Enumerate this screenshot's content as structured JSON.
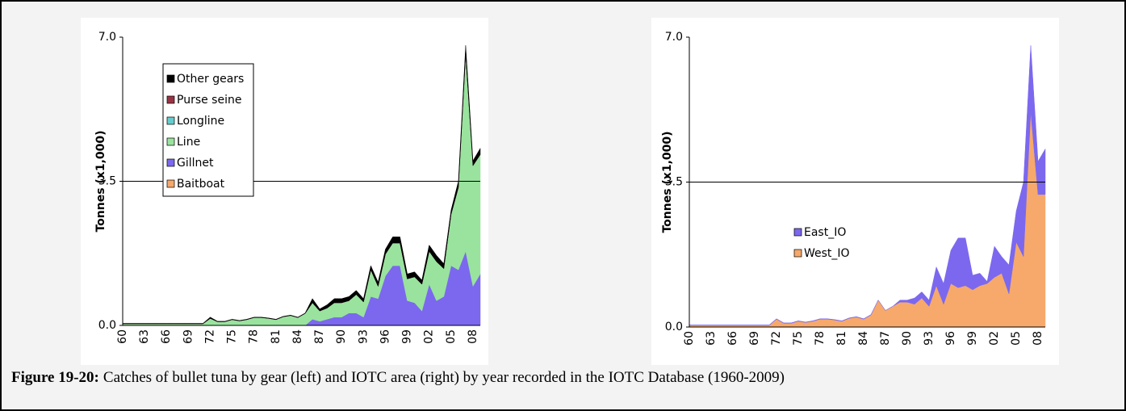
{
  "chart_data": [
    {
      "type": "stacked_area",
      "ylabel": "Tonnes (x1,000)",
      "categories": [
        "60",
        null,
        null,
        "63",
        null,
        null,
        "66",
        null,
        null,
        "69",
        null,
        null,
        "72",
        null,
        null,
        "75",
        null,
        null,
        "78",
        null,
        null,
        "81",
        null,
        null,
        "84",
        null,
        null,
        "87",
        null,
        null,
        "90",
        null,
        null,
        "93",
        null,
        null,
        "96",
        null,
        null,
        "99",
        null,
        null,
        "02",
        null,
        null,
        "05",
        null,
        null,
        "08",
        null
      ],
      "ylim": [
        0,
        7
      ],
      "yticks": [
        {
          "value": 0,
          "label": "0.0"
        },
        {
          "value": 3.5,
          "label": "3.5"
        },
        {
          "value": 7,
          "label": "7.0"
        }
      ],
      "grid": true,
      "legend": "upper left",
      "legend_frame": true,
      "series": [
        {
          "name": "Baitboat",
          "color": "#f6a96b",
          "values": [
            0,
            0,
            0,
            0,
            0,
            0,
            0,
            0,
            0,
            0,
            0,
            0,
            0,
            0,
            0,
            0,
            0,
            0,
            0,
            0,
            0,
            0,
            0,
            0,
            0,
            0,
            0,
            0,
            0,
            0,
            0,
            0,
            0,
            0,
            0,
            0,
            0,
            0,
            0,
            0,
            0,
            0,
            0,
            0,
            0,
            0,
            0,
            0,
            0,
            0
          ]
        },
        {
          "name": "Gillnet",
          "color": "#7b68ee",
          "values": [
            0,
            0,
            0,
            0,
            0,
            0,
            0,
            0,
            0,
            0,
            0,
            0,
            0,
            0,
            0,
            0,
            0,
            0,
            0,
            0,
            0,
            0,
            0,
            0,
            0,
            0,
            0.15,
            0.1,
            0.15,
            0.2,
            0.2,
            0.3,
            0.3,
            0.2,
            0.7,
            0.65,
            1.2,
            1.45,
            1.45,
            0.6,
            0.55,
            0.35,
            1.0,
            0.6,
            0.7,
            1.45,
            1.35,
            1.8,
            0.95,
            1.25
          ]
        },
        {
          "name": "Line",
          "color": "#99e39e",
          "values": [
            0.04,
            0.04,
            0.04,
            0.04,
            0.04,
            0.04,
            0.04,
            0.04,
            0.04,
            0.04,
            0.04,
            0.04,
            0.17,
            0.09,
            0.09,
            0.14,
            0.11,
            0.14,
            0.19,
            0.19,
            0.17,
            0.14,
            0.21,
            0.24,
            0.19,
            0.29,
            0.4,
            0.25,
            0.27,
            0.35,
            0.35,
            0.3,
            0.45,
            0.37,
            0.65,
            0.3,
            0.53,
            0.55,
            0.55,
            0.53,
            0.63,
            0.65,
            0.8,
            0.95,
            0.68,
            1.25,
            2.0,
            4.8,
            2.93,
            2.9
          ]
        },
        {
          "name": "Longline",
          "color": "#66cccc",
          "values": [
            0,
            0,
            0,
            0,
            0,
            0,
            0,
            0,
            0,
            0,
            0,
            0,
            0,
            0,
            0,
            0,
            0,
            0,
            0,
            0,
            0,
            0,
            0,
            0,
            0,
            0,
            0,
            0,
            0,
            0,
            0,
            0,
            0,
            0,
            0,
            0,
            0,
            0,
            0,
            0,
            0,
            0,
            0,
            0,
            0,
            0,
            0,
            0,
            0,
            0
          ]
        },
        {
          "name": "Purse seine",
          "color": "#993344",
          "values": [
            0,
            0,
            0,
            0,
            0,
            0,
            0,
            0,
            0,
            0,
            0,
            0,
            0,
            0,
            0,
            0,
            0,
            0,
            0,
            0,
            0,
            0,
            0,
            0,
            0,
            0,
            0,
            0,
            0,
            0,
            0,
            0,
            0,
            0,
            0,
            0,
            0,
            0,
            0,
            0,
            0,
            0,
            0,
            0,
            0,
            0,
            0,
            0,
            0,
            0
          ]
        },
        {
          "name": "Other gears",
          "color": "#000000",
          "values": [
            0.01,
            0.01,
            0.01,
            0.01,
            0.01,
            0.01,
            0.01,
            0.01,
            0.01,
            0.01,
            0.01,
            0.01,
            0.03,
            0.01,
            0.01,
            0.01,
            0.01,
            0.01,
            0.01,
            0.01,
            0.01,
            0.01,
            0.01,
            0.01,
            0.01,
            0.01,
            0.1,
            0.05,
            0.08,
            0.1,
            0.1,
            0.1,
            0.1,
            0.08,
            0.1,
            0.1,
            0.12,
            0.15,
            0.15,
            0.12,
            0.12,
            0.1,
            0.15,
            0.15,
            0.12,
            0.1,
            0.15,
            0.2,
            0.12,
            0.15
          ]
        }
      ]
    },
    {
      "type": "stacked_area",
      "ylabel": "Tonnes (x1,000)",
      "categories": [
        "60",
        null,
        null,
        "63",
        null,
        null,
        "66",
        null,
        null,
        "69",
        null,
        null,
        "72",
        null,
        null,
        "75",
        null,
        null,
        "78",
        null,
        null,
        "81",
        null,
        null,
        "84",
        null,
        null,
        "87",
        null,
        null,
        "90",
        null,
        null,
        "93",
        null,
        null,
        "96",
        null,
        null,
        "99",
        null,
        null,
        "02",
        null,
        null,
        "05",
        null,
        null,
        "08",
        null
      ],
      "ylim": [
        0,
        7
      ],
      "yticks": [
        {
          "value": 0,
          "label": "0.0"
        },
        {
          "value": 3.5,
          "label": "3.5"
        },
        {
          "value": 7,
          "label": "7.0"
        }
      ],
      "grid": true,
      "legend": "center left",
      "legend_frame": false,
      "series": [
        {
          "name": "West_IO",
          "color": "#f6a96b",
          "values": [
            0.04,
            0.04,
            0.04,
            0.04,
            0.04,
            0.04,
            0.04,
            0.04,
            0.04,
            0.04,
            0.04,
            0.04,
            0.19,
            0.09,
            0.09,
            0.14,
            0.11,
            0.14,
            0.19,
            0.19,
            0.17,
            0.14,
            0.21,
            0.24,
            0.19,
            0.29,
            0.65,
            0.4,
            0.5,
            0.6,
            0.6,
            0.55,
            0.7,
            0.5,
            1.0,
            0.55,
            1.05,
            0.95,
            1.0,
            0.9,
            1.0,
            1.05,
            1.2,
            1.3,
            0.8,
            2.05,
            1.7,
            5.2,
            3.2,
            3.2
          ]
        },
        {
          "name": "East_IO",
          "color": "#7b68ee",
          "values": [
            0.01,
            0.01,
            0.01,
            0.01,
            0.01,
            0.01,
            0.01,
            0.01,
            0.01,
            0.01,
            0.01,
            0.01,
            0.01,
            0.01,
            0.01,
            0.01,
            0.01,
            0.01,
            0.01,
            0.01,
            0.01,
            0.01,
            0.01,
            0.01,
            0.01,
            0.01,
            0,
            0,
            0,
            0.05,
            0.05,
            0.15,
            0.15,
            0.15,
            0.45,
            0.5,
            0.8,
            1.2,
            1.15,
            0.35,
            0.3,
            0.05,
            0.75,
            0.4,
            0.7,
            0.75,
            1.8,
            1.6,
            0.8,
            1.1
          ]
        }
      ]
    }
  ],
  "caption": {
    "label": "Figure 19-20:",
    "text": "Catches of bullet tuna by gear (left) and IOTC area (right) by year recorded in the IOTC Database (1960-2009)"
  }
}
